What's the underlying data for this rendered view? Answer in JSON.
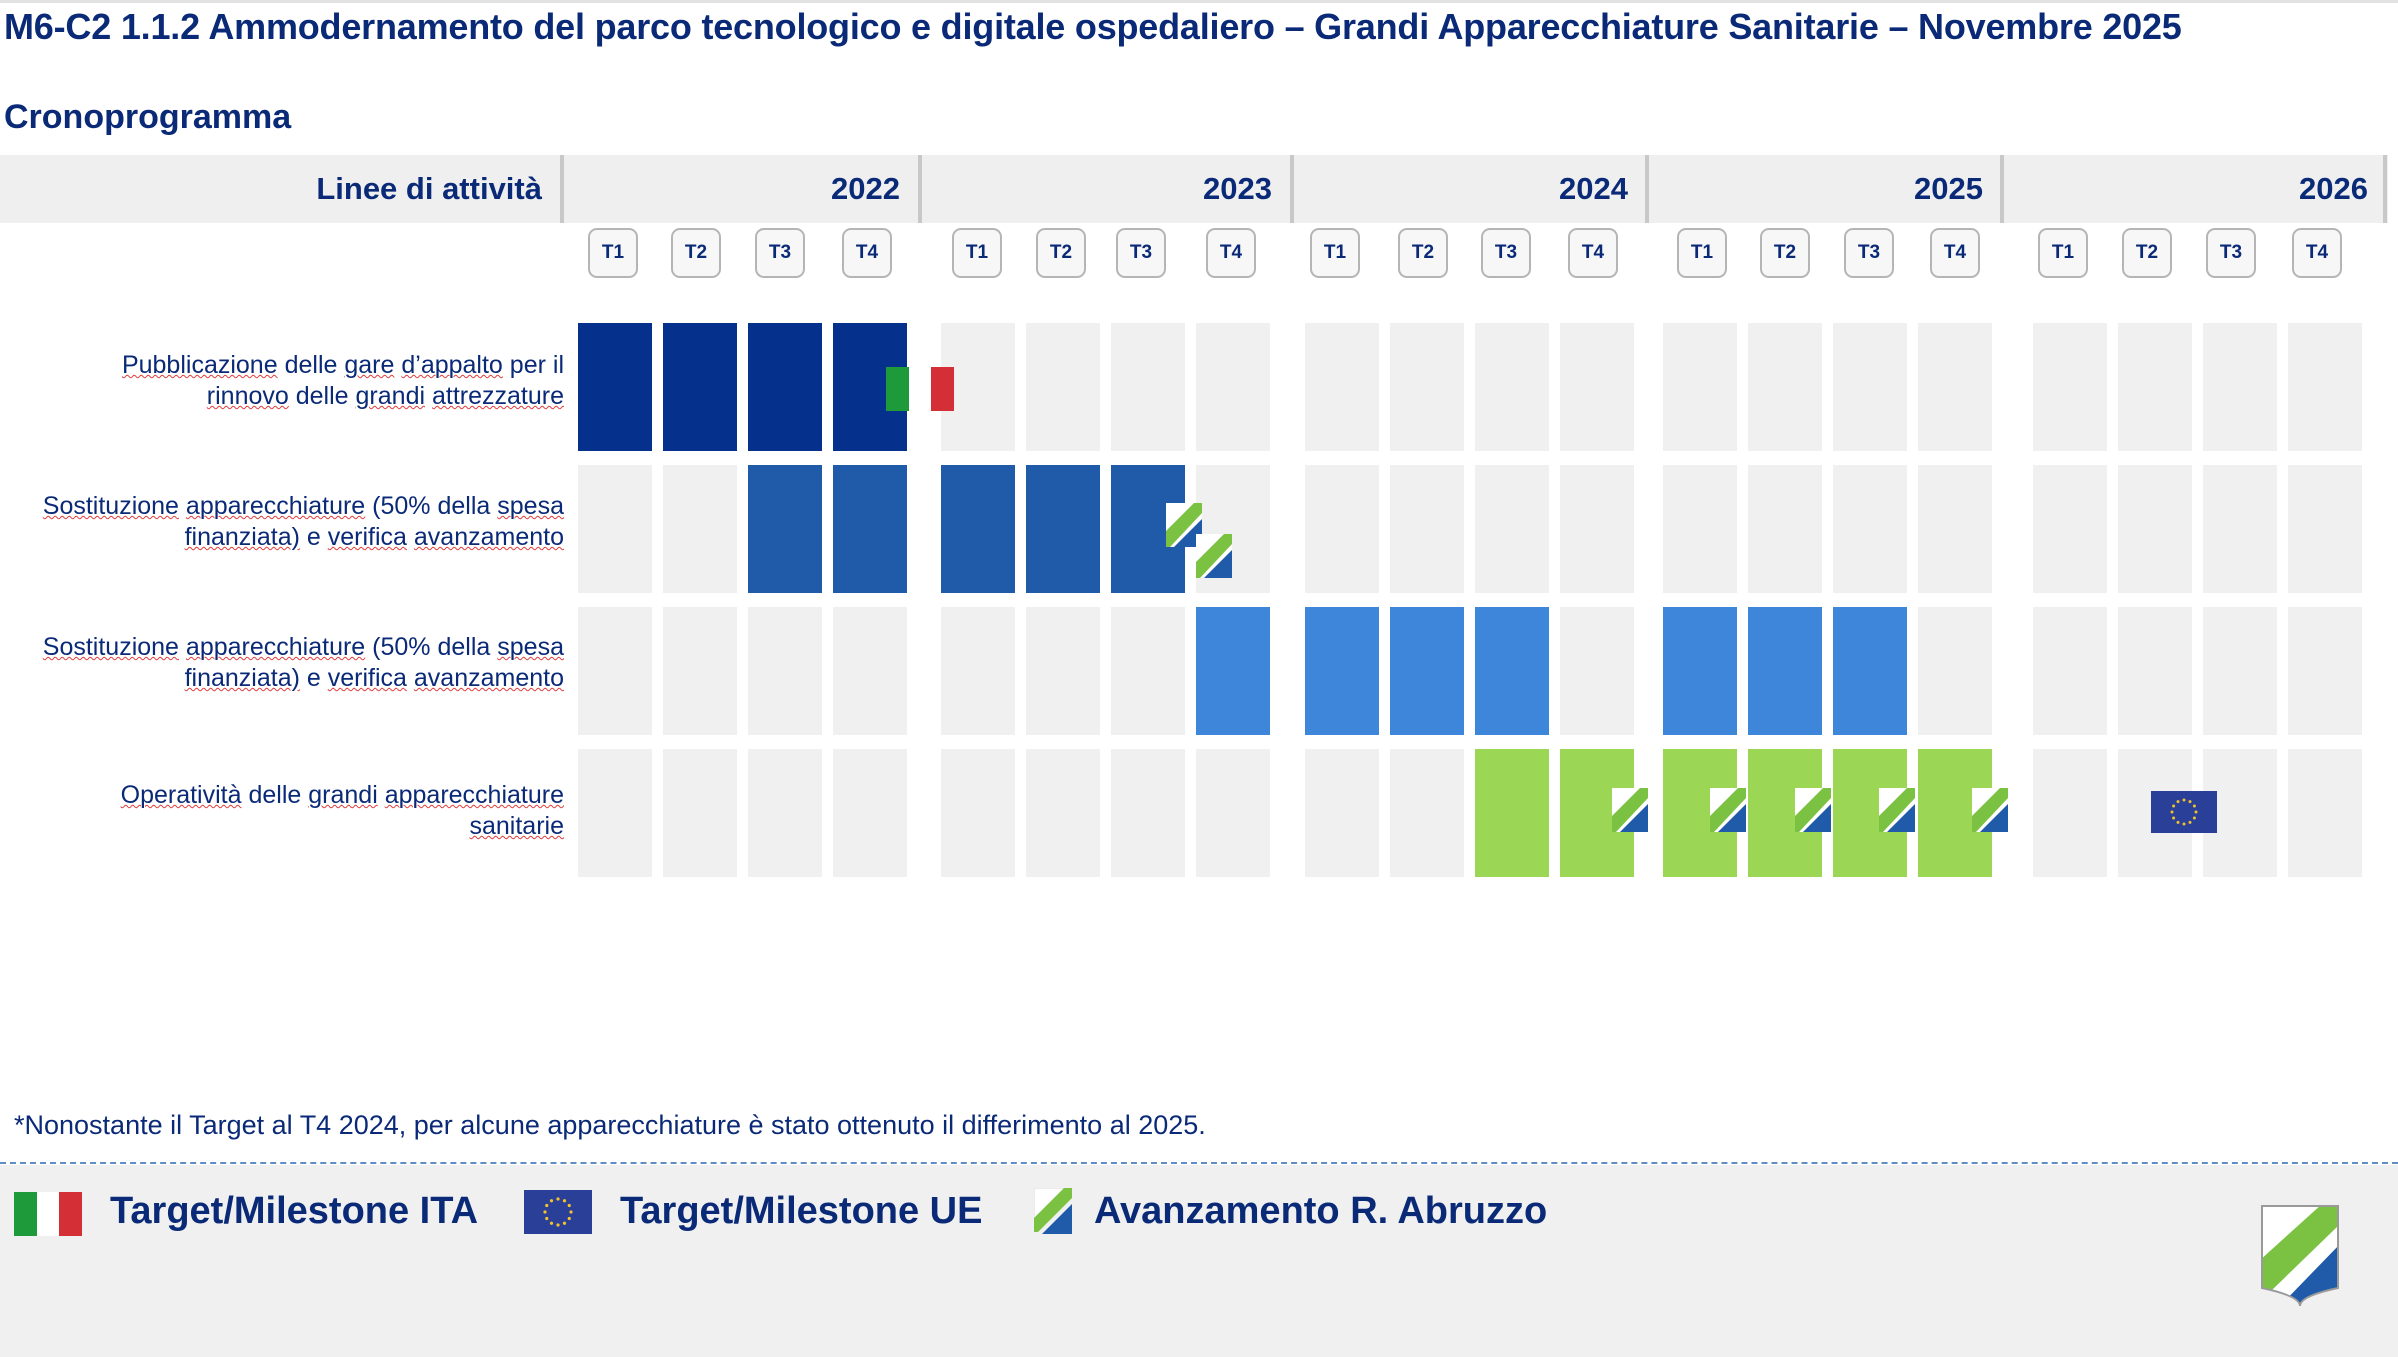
{
  "page_title": "M6-C2 1.1.2 Ammodernamento del parco tecnologico e digitale ospedaliero – Grandi Apparecchiature Sanitarie – Novembre 2025",
  "section_title": "Cronoprogramma",
  "activities_header": "Linee di attività",
  "years": [
    "2022",
    "2023",
    "2024",
    "2025",
    "2026"
  ],
  "quarters": [
    "T1",
    "T2",
    "T3",
    "T4"
  ],
  "rows": [
    {
      "label_line1": "Pubblicazione delle gare d’appalto per il",
      "label_line2": "rinnovo delle grandi attrezzature",
      "filled_quarters": [
        0,
        1,
        2,
        3
      ],
      "color": "#05308c"
    },
    {
      "label_line1": "Sostituzione apparecchiature (50% della spesa",
      "label_line2": "finanziata) e verifica avanzamento",
      "filled_quarters": [
        2,
        3,
        4,
        5,
        6
      ],
      "color": "#1f5ba8"
    },
    {
      "label_line1": "Sostituzione apparecchiature (50% della spesa",
      "label_line2": "finanziata) e verifica avanzamento",
      "filled_quarters": [
        7,
        8,
        9,
        10,
        12,
        13,
        14
      ],
      "color": "#3e86da"
    },
    {
      "label_line1": "Operatività delle grandi apparecchiature",
      "label_line2": "sanitarie",
      "filled_quarters": [
        10,
        11,
        12,
        13,
        14,
        15
      ],
      "color": "#9bd754"
    }
  ],
  "markers": [
    {
      "type": "italy-flag",
      "row": 0,
      "after_quarter": 3
    },
    {
      "type": "abruzzo-mark",
      "row": 1,
      "after_quarter": 6
    },
    {
      "type": "abruzzo-mark",
      "row": 1,
      "after_quarter": 6
    },
    {
      "type": "abruzzo-mark",
      "row": 3,
      "after_quarter": 11
    },
    {
      "type": "abruzzo-mark",
      "row": 3,
      "after_quarter": 12
    },
    {
      "type": "abruzzo-mark",
      "row": 3,
      "after_quarter": 13
    },
    {
      "type": "abruzzo-mark",
      "row": 3,
      "after_quarter": 14
    },
    {
      "type": "abruzzo-mark",
      "row": 3,
      "after_quarter": 15
    },
    {
      "type": "eu-flag",
      "row": 3,
      "quarter": 17
    }
  ],
  "footnote": "*Nonostante il Target al T4 2024, per alcune apparecchiature è stato ottenuto il differimento al 2025.",
  "legend": {
    "ita": "Target/Milestone ITA",
    "ue": "Target/Milestone UE",
    "abruzzo": "Avanzamento R. Abruzzo"
  },
  "colors": {
    "navy_text": "#0a2a78",
    "phase1": "#05308c",
    "phase2": "#1f5ba8",
    "phase3": "#3e86da",
    "phase4": "#9bd754",
    "empty_cell": "#f0f0f0",
    "italy_green": "#1f9a3a",
    "italy_red": "#d42e36",
    "eu_blue": "#2a3f98",
    "eu_star": "#f2c12e",
    "abruzzo_green": "#7cc242",
    "abruzzo_blue": "#1f5ba8"
  },
  "icons": [
    "italy-flag-icon",
    "eu-flag-icon",
    "abruzzo-progress-icon",
    "abruzzo-shield-logo"
  ]
}
